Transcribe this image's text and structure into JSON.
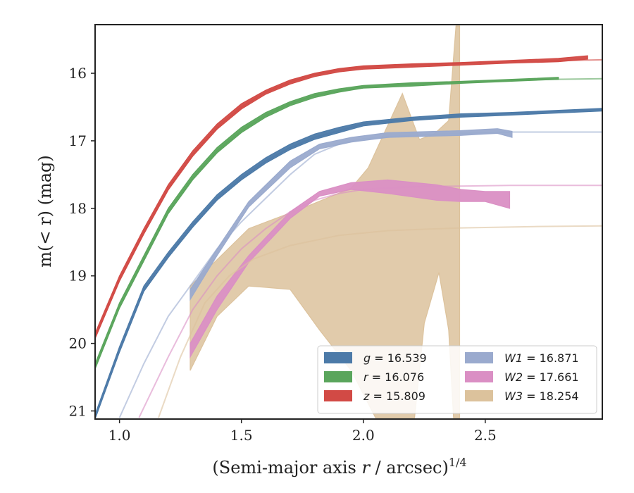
{
  "chart_data": {
    "type": "line",
    "title": "",
    "xlabel": "(Semi-major axis r / arcsec)",
    "xlabel_italic": "r",
    "xlabel_superscript": "1/4",
    "ylabel": "m(< r) (mag)",
    "xlim": [
      0.9,
      2.98
    ],
    "ylim": [
      21.12,
      15.28
    ],
    "y_inverted": true,
    "grid": false,
    "legend_placement": "lower-right",
    "x_ticks": [
      {
        "value": 1.0,
        "label": "1.0"
      },
      {
        "value": 1.5,
        "label": "1.5"
      },
      {
        "value": 2.0,
        "label": "2.0"
      },
      {
        "value": 2.5,
        "label": "2.5"
      }
    ],
    "y_ticks": [
      {
        "value": 16,
        "label": "16"
      },
      {
        "value": 17,
        "label": "17"
      },
      {
        "value": 18,
        "label": "18"
      },
      {
        "value": 19,
        "label": "19"
      },
      {
        "value": 20,
        "label": "20"
      },
      {
        "value": 21,
        "label": "21"
      }
    ],
    "series": [
      {
        "name": "g = 16.539",
        "band": "g",
        "mag": "16.539",
        "color": "#4c7aa8",
        "model": [
          [
            0.9,
            21.1
          ],
          [
            1.0,
            20.1
          ],
          [
            1.1,
            19.2
          ],
          [
            1.2,
            18.7
          ],
          [
            1.3,
            18.25
          ],
          [
            1.4,
            17.85
          ],
          [
            1.5,
            17.55
          ],
          [
            1.6,
            17.3
          ],
          [
            1.7,
            17.1
          ],
          [
            1.8,
            16.95
          ],
          [
            1.9,
            16.85
          ],
          [
            2.0,
            16.75
          ],
          [
            2.2,
            16.68
          ],
          [
            2.4,
            16.63
          ],
          [
            2.6,
            16.59
          ],
          [
            2.98,
            16.53
          ]
        ],
        "band_upper": [
          [
            0.9,
            21.05
          ],
          [
            1.0,
            20.05
          ],
          [
            1.1,
            19.15
          ],
          [
            1.2,
            18.65
          ],
          [
            1.3,
            18.2
          ],
          [
            1.4,
            17.8
          ],
          [
            1.5,
            17.5
          ],
          [
            1.6,
            17.25
          ],
          [
            1.7,
            17.05
          ],
          [
            1.8,
            16.9
          ],
          [
            1.9,
            16.8
          ],
          [
            2.0,
            16.72
          ],
          [
            2.2,
            16.65
          ],
          [
            2.4,
            16.6
          ],
          [
            2.6,
            16.58
          ],
          [
            2.98,
            16.52
          ]
        ],
        "band_lower": [
          [
            2.98,
            16.56
          ],
          [
            2.6,
            16.62
          ],
          [
            2.4,
            16.65
          ],
          [
            2.2,
            16.7
          ],
          [
            2.0,
            16.78
          ],
          [
            1.9,
            16.88
          ],
          [
            1.8,
            16.98
          ],
          [
            1.7,
            17.13
          ],
          [
            1.6,
            17.33
          ],
          [
            1.5,
            17.58
          ],
          [
            1.4,
            17.88
          ],
          [
            1.3,
            18.28
          ],
          [
            1.2,
            18.73
          ],
          [
            1.1,
            19.23
          ],
          [
            1.0,
            20.13
          ],
          [
            0.9,
            21.12
          ]
        ]
      },
      {
        "name": "r = 16.076",
        "band": "r",
        "mag": "16.076",
        "color": "#5aa55c",
        "model": [
          [
            0.9,
            20.35
          ],
          [
            1.0,
            19.45
          ],
          [
            1.1,
            18.75
          ],
          [
            1.2,
            18.05
          ],
          [
            1.3,
            17.55
          ],
          [
            1.4,
            17.15
          ],
          [
            1.5,
            16.85
          ],
          [
            1.6,
            16.62
          ],
          [
            1.7,
            16.45
          ],
          [
            1.8,
            16.33
          ],
          [
            1.9,
            16.26
          ],
          [
            2.0,
            16.2
          ],
          [
            2.2,
            16.16
          ],
          [
            2.4,
            16.13
          ],
          [
            2.6,
            16.1
          ],
          [
            2.98,
            16.08
          ]
        ],
        "band_upper": [
          [
            0.9,
            20.3
          ],
          [
            1.0,
            19.4
          ],
          [
            1.1,
            18.7
          ],
          [
            1.2,
            18.0
          ],
          [
            1.3,
            17.5
          ],
          [
            1.4,
            17.1
          ],
          [
            1.5,
            16.8
          ],
          [
            1.6,
            16.58
          ],
          [
            1.7,
            16.42
          ],
          [
            1.8,
            16.3
          ],
          [
            1.9,
            16.23
          ],
          [
            2.0,
            16.18
          ],
          [
            2.2,
            16.14
          ],
          [
            2.4,
            16.12
          ],
          [
            2.6,
            16.09
          ],
          [
            2.8,
            16.06
          ]
        ],
        "band_lower": [
          [
            2.8,
            16.09
          ],
          [
            2.6,
            16.12
          ],
          [
            2.4,
            16.15
          ],
          [
            2.2,
            16.19
          ],
          [
            2.0,
            16.22
          ],
          [
            1.9,
            16.28
          ],
          [
            1.8,
            16.36
          ],
          [
            1.7,
            16.48
          ],
          [
            1.6,
            16.65
          ],
          [
            1.5,
            16.88
          ],
          [
            1.4,
            17.18
          ],
          [
            1.3,
            17.58
          ],
          [
            1.2,
            18.08
          ],
          [
            1.1,
            18.78
          ],
          [
            1.0,
            19.48
          ],
          [
            0.9,
            20.38
          ]
        ]
      },
      {
        "name": "z = 15.809",
        "band": "z",
        "mag": "15.809",
        "color": "#d24a45",
        "model": [
          [
            0.9,
            19.9
          ],
          [
            1.0,
            19.05
          ],
          [
            1.1,
            18.35
          ],
          [
            1.2,
            17.7
          ],
          [
            1.3,
            17.2
          ],
          [
            1.4,
            16.8
          ],
          [
            1.5,
            16.5
          ],
          [
            1.6,
            16.28
          ],
          [
            1.7,
            16.13
          ],
          [
            1.8,
            16.02
          ],
          [
            1.9,
            15.95
          ],
          [
            2.0,
            15.91
          ],
          [
            2.2,
            15.88
          ],
          [
            2.4,
            15.85
          ],
          [
            2.6,
            15.83
          ],
          [
            2.98,
            15.8
          ]
        ],
        "band_upper": [
          [
            0.9,
            19.85
          ],
          [
            1.0,
            19.0
          ],
          [
            1.1,
            18.3
          ],
          [
            1.2,
            17.65
          ],
          [
            1.3,
            17.15
          ],
          [
            1.4,
            16.75
          ],
          [
            1.5,
            16.45
          ],
          [
            1.6,
            16.25
          ],
          [
            1.7,
            16.1
          ],
          [
            1.8,
            16.0
          ],
          [
            1.9,
            15.93
          ],
          [
            2.0,
            15.89
          ],
          [
            2.2,
            15.86
          ],
          [
            2.4,
            15.84
          ],
          [
            2.6,
            15.81
          ],
          [
            2.8,
            15.78
          ],
          [
            2.92,
            15.74
          ]
        ],
        "band_lower": [
          [
            2.92,
            15.79
          ],
          [
            2.8,
            15.83
          ],
          [
            2.6,
            15.85
          ],
          [
            2.4,
            15.88
          ],
          [
            2.2,
            15.91
          ],
          [
            2.0,
            15.94
          ],
          [
            1.9,
            15.98
          ],
          [
            1.8,
            16.05
          ],
          [
            1.7,
            16.16
          ],
          [
            1.6,
            16.31
          ],
          [
            1.5,
            16.53
          ],
          [
            1.4,
            16.83
          ],
          [
            1.3,
            17.23
          ],
          [
            1.2,
            17.73
          ],
          [
            1.1,
            18.38
          ],
          [
            1.0,
            19.08
          ],
          [
            0.9,
            19.93
          ]
        ]
      },
      {
        "name": "W1 = 16.871",
        "band": "W1",
        "mag": "16.871",
        "color": "#9aaace",
        "model": [
          [
            1.0,
            21.1
          ],
          [
            1.1,
            20.3
          ],
          [
            1.2,
            19.6
          ],
          [
            1.3,
            19.1
          ],
          [
            1.4,
            18.6
          ],
          [
            1.5,
            18.2
          ],
          [
            1.6,
            17.85
          ],
          [
            1.7,
            17.5
          ],
          [
            1.8,
            17.2
          ],
          [
            1.9,
            17.05
          ],
          [
            2.0,
            16.97
          ],
          [
            2.2,
            16.92
          ],
          [
            2.4,
            16.89
          ],
          [
            2.6,
            16.87
          ],
          [
            2.98,
            16.87
          ]
        ],
        "band_upper": [
          [
            1.29,
            19.2
          ],
          [
            1.4,
            18.6
          ],
          [
            1.53,
            17.9
          ],
          [
            1.7,
            17.3
          ],
          [
            1.82,
            17.05
          ],
          [
            1.95,
            16.95
          ],
          [
            2.1,
            16.88
          ],
          [
            2.3,
            16.86
          ],
          [
            2.4,
            16.85
          ],
          [
            2.5,
            16.83
          ],
          [
            2.55,
            16.82
          ],
          [
            2.61,
            16.86
          ]
        ],
        "band_lower": [
          [
            2.61,
            16.95
          ],
          [
            2.55,
            16.89
          ],
          [
            2.5,
            16.9
          ],
          [
            2.4,
            16.92
          ],
          [
            2.3,
            16.93
          ],
          [
            2.1,
            16.95
          ],
          [
            1.95,
            17.02
          ],
          [
            1.82,
            17.12
          ],
          [
            1.7,
            17.4
          ],
          [
            1.53,
            17.98
          ],
          [
            1.4,
            18.7
          ],
          [
            1.29,
            19.35
          ]
        ]
      },
      {
        "name": "W2 = 17.661",
        "band": "W2",
        "mag": "17.661",
        "color": "#da8fc4",
        "model": [
          [
            1.08,
            21.1
          ],
          [
            1.2,
            20.2
          ],
          [
            1.3,
            19.5
          ],
          [
            1.4,
            19.0
          ],
          [
            1.5,
            18.6
          ],
          [
            1.6,
            18.3
          ],
          [
            1.7,
            18.05
          ],
          [
            1.8,
            17.88
          ],
          [
            1.9,
            17.78
          ],
          [
            2.0,
            17.72
          ],
          [
            2.2,
            17.68
          ],
          [
            2.4,
            17.67
          ],
          [
            2.6,
            17.66
          ],
          [
            2.98,
            17.66
          ]
        ],
        "band_upper": [
          [
            1.29,
            20.0
          ],
          [
            1.4,
            19.3
          ],
          [
            1.53,
            18.7
          ],
          [
            1.7,
            18.05
          ],
          [
            1.82,
            17.75
          ],
          [
            1.95,
            17.62
          ],
          [
            2.1,
            17.58
          ],
          [
            2.3,
            17.65
          ],
          [
            2.4,
            17.72
          ],
          [
            2.5,
            17.75
          ],
          [
            2.6,
            17.75
          ]
        ],
        "band_lower": [
          [
            2.6,
            18.0
          ],
          [
            2.5,
            17.9
          ],
          [
            2.4,
            17.9
          ],
          [
            2.3,
            17.88
          ],
          [
            2.1,
            17.78
          ],
          [
            1.95,
            17.72
          ],
          [
            1.82,
            17.82
          ],
          [
            1.7,
            18.15
          ],
          [
            1.53,
            18.8
          ],
          [
            1.4,
            19.5
          ],
          [
            1.29,
            20.2
          ]
        ]
      },
      {
        "name": "W3 = 18.254",
        "band": "W3",
        "mag": "18.254",
        "color": "#dcc29c",
        "model": [
          [
            1.16,
            21.1
          ],
          [
            1.25,
            20.2
          ],
          [
            1.35,
            19.4
          ],
          [
            1.45,
            19.0
          ],
          [
            1.55,
            18.75
          ],
          [
            1.7,
            18.55
          ],
          [
            1.9,
            18.4
          ],
          [
            2.1,
            18.33
          ],
          [
            2.4,
            18.29
          ],
          [
            2.7,
            18.27
          ],
          [
            2.98,
            18.26
          ]
        ],
        "band_upper": [
          [
            1.29,
            19.15
          ],
          [
            1.53,
            18.3
          ],
          [
            1.75,
            18.0
          ],
          [
            1.95,
            17.7
          ],
          [
            2.02,
            17.4
          ],
          [
            2.16,
            16.3
          ],
          [
            2.23,
            16.98
          ],
          [
            2.29,
            16.9
          ],
          [
            2.35,
            16.7
          ],
          [
            2.38,
            15.3
          ],
          [
            2.395,
            15.3
          ]
        ],
        "band_lower": [
          [
            2.395,
            21.1
          ],
          [
            2.37,
            21.1
          ],
          [
            2.35,
            19.8
          ],
          [
            2.31,
            18.95
          ],
          [
            2.25,
            19.7
          ],
          [
            2.21,
            21.1
          ],
          [
            2.05,
            21.1
          ],
          [
            1.95,
            20.4
          ],
          [
            1.82,
            19.8
          ],
          [
            1.7,
            19.2
          ],
          [
            1.53,
            19.15
          ],
          [
            1.4,
            19.6
          ],
          [
            1.29,
            20.4
          ]
        ]
      }
    ]
  }
}
